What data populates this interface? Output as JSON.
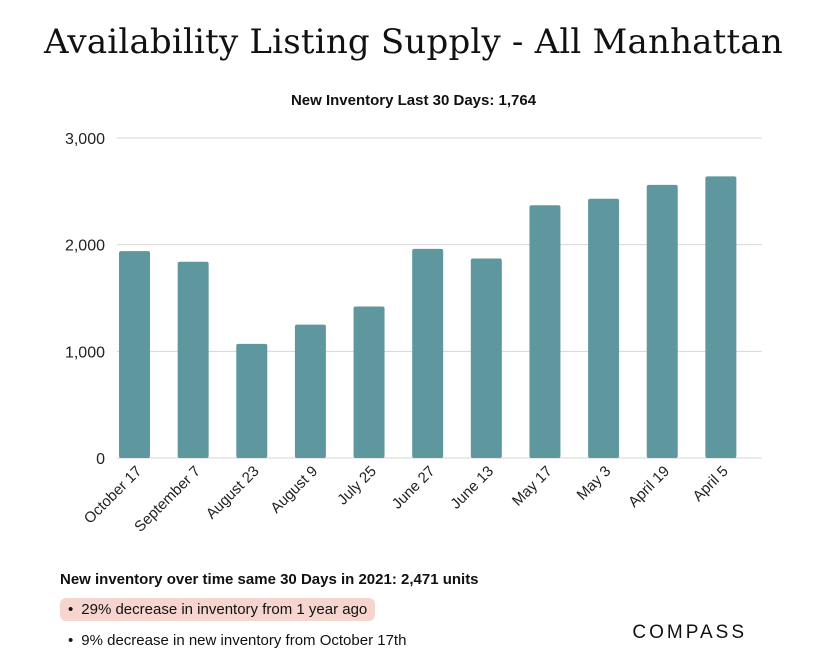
{
  "header": {
    "title": "Availability Listing Supply - All Manhattan",
    "subtitle": "New Inventory Last 30 Days: 1,764"
  },
  "chart_data": {
    "type": "bar",
    "categories": [
      "October 17",
      "September 7",
      "August 23",
      "August 9",
      "July 25",
      "June 27",
      "June 13",
      "May 17",
      "May 3",
      "April 19",
      "April 5"
    ],
    "values": [
      1940,
      1840,
      1070,
      1250,
      1420,
      1960,
      1870,
      2370,
      2430,
      2560,
      2640
    ],
    "ylim": [
      0,
      3000
    ],
    "yticks": [
      0,
      1000,
      2000,
      3000
    ],
    "ytick_labels": [
      "0",
      "1,000",
      "2,000",
      "3,000"
    ],
    "xlabel": "",
    "ylabel": "",
    "grid": true,
    "bar_color": "#5f979e",
    "grid_color": "#d6d6d6"
  },
  "notes": {
    "title": "New inventory over time same 30 Days in 2021: 2,471 units",
    "bullets": [
      "29% decrease in inventory from 1 year ago",
      "9% decrease in new inventory from October 17th"
    ],
    "highlight_color": "#f6d5cf"
  },
  "brand": {
    "logo_text": "COMPASS"
  }
}
